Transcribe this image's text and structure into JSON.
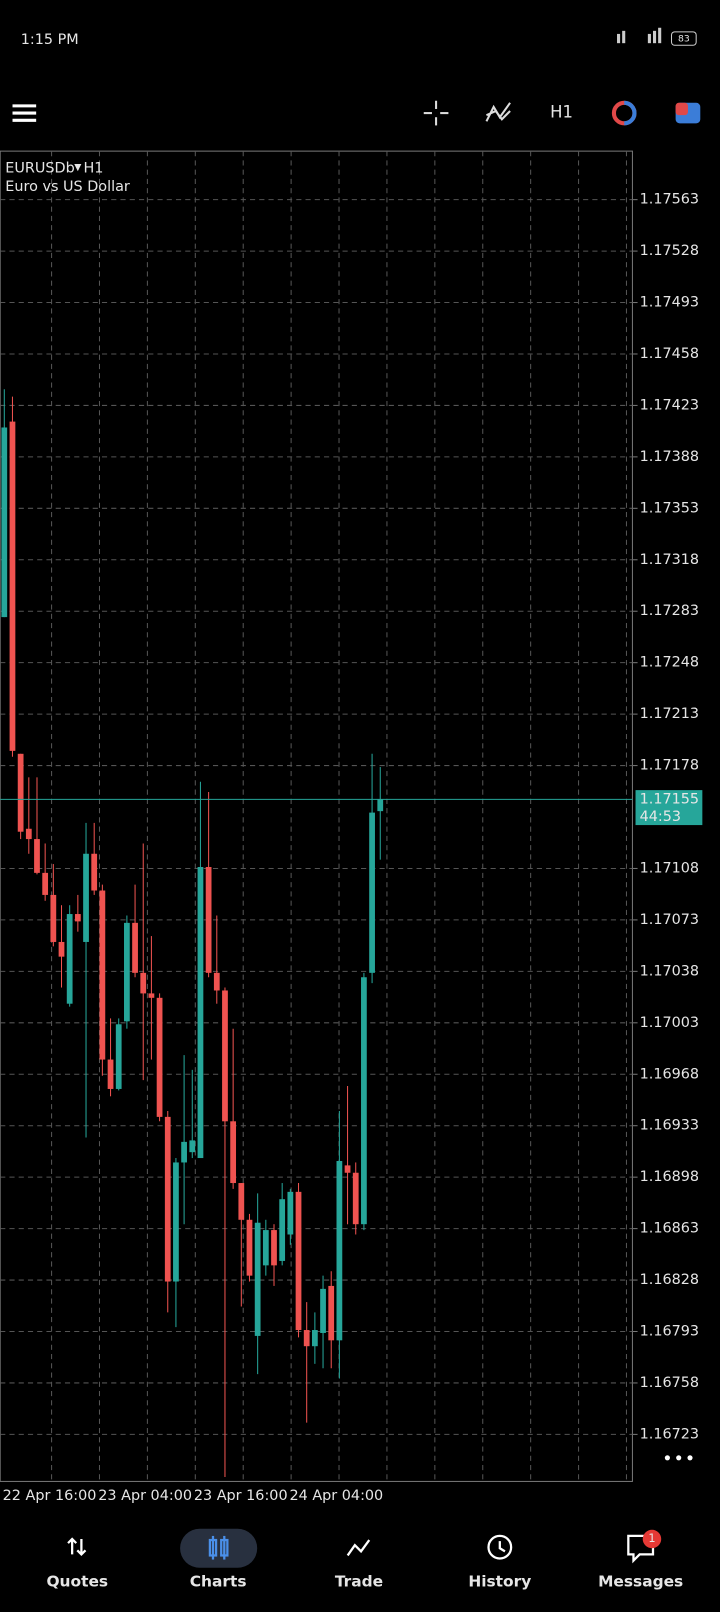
{
  "status_bar": {
    "time": "1:15 PM",
    "battery": "83"
  },
  "toolbar": {
    "timeframe": "H1"
  },
  "chart": {
    "type": "candlestick",
    "symbol": "EURUSDb",
    "timeframe": "H1",
    "description": "Euro vs US Dollar",
    "up_color": "#26a69a",
    "down_color": "#ef5350",
    "grid": true,
    "ylim": [
      1.16691,
      1.17596
    ],
    "yticks": [
      1.17563,
      1.17528,
      1.17493,
      1.17458,
      1.17423,
      1.17388,
      1.17353,
      1.17318,
      1.17283,
      1.17248,
      1.17213,
      1.17178,
      1.17108,
      1.17073,
      1.17038,
      1.17003,
      1.16968,
      1.16933,
      1.16898,
      1.16863,
      1.16828,
      1.16793,
      1.16758,
      1.16723
    ],
    "x_labels": [
      "22 Apr 16:00",
      "23 Apr 04:00",
      "23 Apr 16:00",
      "24 Apr 04:00"
    ],
    "current_price": 1.17155,
    "countdown": "44:53",
    "candles": [
      [
        1.17279,
        1.17434,
        1.17279,
        1.17408
      ],
      [
        1.17412,
        1.17429,
        1.17184,
        1.17188
      ],
      [
        1.17186,
        1.17186,
        1.17128,
        1.17133
      ],
      [
        1.17135,
        1.1717,
        1.17118,
        1.17128
      ],
      [
        1.17128,
        1.1717,
        1.17104,
        1.17105
      ],
      [
        1.17105,
        1.17125,
        1.17086,
        1.1709
      ],
      [
        1.1709,
        1.17111,
        1.17055,
        1.17058
      ],
      [
        1.17058,
        1.17083,
        1.17027,
        1.17048
      ],
      [
        1.17016,
        1.17083,
        1.17014,
        1.17077
      ],
      [
        1.17077,
        1.1709,
        1.17065,
        1.17072
      ],
      [
        1.17058,
        1.17139,
        1.16925,
        1.17118
      ],
      [
        1.17118,
        1.17139,
        1.1709,
        1.17093
      ],
      [
        1.17093,
        1.17097,
        1.16967,
        1.16978
      ],
      [
        1.16978,
        1.17006,
        1.16953,
        1.16958
      ],
      [
        1.16958,
        1.17006,
        1.16957,
        1.17002
      ],
      [
        1.17004,
        1.17076,
        1.16999,
        1.17071
      ],
      [
        1.17071,
        1.17097,
        1.17034,
        1.17037
      ],
      [
        1.17037,
        1.17125,
        1.16964,
        1.17023
      ],
      [
        1.17023,
        1.17062,
        1.16978,
        1.1702
      ],
      [
        1.1702,
        1.17023,
        1.16936,
        1.16939
      ],
      [
        1.16939,
        1.16943,
        1.16806,
        1.16827
      ],
      [
        1.16827,
        1.16911,
        1.16796,
        1.16908
      ],
      [
        1.16908,
        1.16981,
        1.16866,
        1.16922
      ],
      [
        1.16915,
        1.16971,
        1.16911,
        1.16923
      ],
      [
        1.16911,
        1.17167,
        1.16911,
        1.17109
      ],
      [
        1.17109,
        1.1716,
        1.17034,
        1.17037
      ],
      [
        1.17037,
        1.17076,
        1.17016,
        1.17025
      ],
      [
        1.17025,
        1.17027,
        1.16694,
        1.16936
      ],
      [
        1.16936,
        1.16999,
        1.1689,
        1.16894
      ],
      [
        1.16894,
        1.16894,
        1.1681,
        1.16869
      ],
      [
        1.16869,
        1.16873,
        1.16827,
        1.16831
      ],
      [
        1.1679,
        1.16887,
        1.16764,
        1.16867
      ],
      [
        1.16838,
        1.16869,
        1.16831,
        1.16862
      ],
      [
        1.16862,
        1.16866,
        1.16824,
        1.16838
      ],
      [
        1.16841,
        1.16894,
        1.16838,
        1.16883
      ],
      [
        1.16859,
        1.1689,
        1.16852,
        1.16888
      ],
      [
        1.16888,
        1.16894,
        1.16789,
        1.16794
      ],
      [
        1.16794,
        1.16813,
        1.16731,
        1.16783
      ],
      [
        1.16783,
        1.16806,
        1.16771,
        1.16794
      ],
      [
        1.16792,
        1.16831,
        1.16768,
        1.16822
      ],
      [
        1.16824,
        1.16834,
        1.16768,
        1.16787
      ],
      [
        1.16787,
        1.16943,
        1.16761,
        1.16909
      ],
      [
        1.16906,
        1.1696,
        1.16866,
        1.16901
      ],
      [
        1.16901,
        1.16908,
        1.16859,
        1.16866
      ],
      [
        1.16866,
        1.17037,
        1.16862,
        1.17034
      ],
      [
        1.17037,
        1.17186,
        1.1703,
        1.17146
      ],
      [
        1.17147,
        1.17177,
        1.17114,
        1.17155
      ]
    ]
  },
  "nav": {
    "items": [
      "Quotes",
      "Charts",
      "Trade",
      "History",
      "Messages"
    ],
    "badge": "1"
  }
}
